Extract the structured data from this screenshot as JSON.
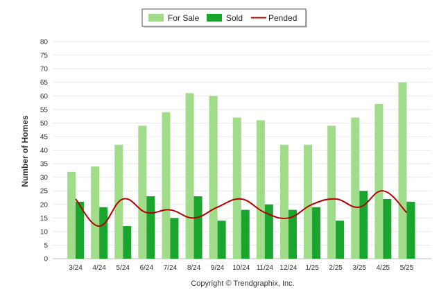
{
  "chart_data": {
    "type": "bar",
    "title": "",
    "xlabel": "",
    "ylabel": "Number of Homes",
    "ylim": [
      0,
      80
    ],
    "yticks": [
      0,
      5,
      10,
      15,
      20,
      25,
      30,
      35,
      40,
      45,
      50,
      55,
      60,
      65,
      70,
      75,
      80
    ],
    "grid": true,
    "legend_position": "top-center",
    "categories": [
      "3/24",
      "4/24",
      "5/24",
      "6/24",
      "7/24",
      "8/24",
      "9/24",
      "10/24",
      "11/24",
      "12/24",
      "1/25",
      "2/25",
      "3/25",
      "4/25",
      "5/25"
    ],
    "series": [
      {
        "name": "For Sale",
        "kind": "bar",
        "color": "#a0dc8a",
        "values": [
          32,
          34,
          42,
          49,
          54,
          61,
          60,
          52,
          51,
          42,
          42,
          49,
          52,
          57,
          65
        ]
      },
      {
        "name": "Sold",
        "kind": "bar",
        "color": "#1aa52e",
        "values": [
          21,
          19,
          12,
          23,
          15,
          23,
          14,
          18,
          20,
          18,
          19,
          14,
          25,
          22,
          21
        ]
      },
      {
        "name": "Pended",
        "kind": "line",
        "color": "#b40000",
        "values": [
          22,
          12,
          22,
          17,
          18,
          15,
          19,
          22,
          17,
          15,
          20,
          22,
          19,
          25,
          17
        ]
      }
    ],
    "credit": "Copyright © Trendgraphix, Inc."
  }
}
